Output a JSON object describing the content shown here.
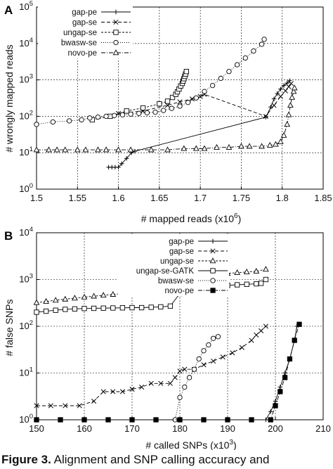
{
  "caption": {
    "label": "Figure 3.",
    "text": "Alignment and SNP calling accuracy and"
  },
  "chart_data": [
    {
      "panel": "A",
      "type": "line",
      "xlabel": "# mapped reads (x10",
      "xlabel_sup": "6",
      "xlabel_end": ")",
      "ylabel": "# wrongly mapped reads",
      "xlim": [
        1.5,
        1.85
      ],
      "ylim": [
        1,
        100000
      ],
      "yscale": "log",
      "grid": true,
      "legend_position": "top-left",
      "x_ticks": [
        "1.5",
        "1.55",
        "1.6",
        "1.65",
        "1.7",
        "1.75",
        "1.8",
        "1.85"
      ],
      "y_ticks": [
        {
          "base": "10",
          "exp": "0"
        },
        {
          "base": "10",
          "exp": "1"
        },
        {
          "base": "10",
          "exp": "2"
        },
        {
          "base": "10",
          "exp": "3"
        },
        {
          "base": "10",
          "exp": "4"
        },
        {
          "base": "10",
          "exp": "5"
        }
      ],
      "series": [
        {
          "name": "gap-pe",
          "marker": "plus",
          "dash": "",
          "points": [
            [
              1.588,
              4
            ],
            [
              1.592,
              4
            ],
            [
              1.596,
              4
            ],
            [
              1.6,
              4
            ],
            [
              1.604,
              5
            ],
            [
              1.61,
              7
            ],
            [
              1.616,
              10
            ],
            [
              1.62,
              11
            ],
            [
              1.78,
              95
            ],
            [
              1.786,
              180
            ],
            [
              1.79,
              300
            ],
            [
              1.794,
              420
            ],
            [
              1.798,
              560
            ],
            [
              1.802,
              700
            ],
            [
              1.806,
              820
            ],
            [
              1.809,
              950
            ]
          ]
        },
        {
          "name": "gap-se",
          "marker": "x",
          "dash": "5,3",
          "points": [
            [
              1.6,
              120
            ],
            [
              1.63,
              140
            ],
            [
              1.66,
              200
            ],
            [
              1.675,
              250
            ],
            [
              1.69,
              300
            ],
            [
              1.7,
              350
            ],
            [
              1.705,
              400
            ],
            [
              1.78,
              100
            ],
            [
              1.79,
              200
            ],
            [
              1.798,
              350
            ],
            [
              1.804,
              500
            ],
            [
              1.808,
              650
            ],
            [
              1.811,
              800
            ]
          ]
        },
        {
          "name": "ungap-se",
          "marker": "square",
          "dash": "3,2",
          "points": [
            [
              1.568,
              80
            ],
            [
              1.59,
              100
            ],
            [
              1.61,
              140
            ],
            [
              1.63,
              170
            ],
            [
              1.65,
              220
            ],
            [
              1.66,
              260
            ],
            [
              1.666,
              330
            ],
            [
              1.67,
              400
            ],
            [
              1.672,
              470
            ],
            [
              1.674,
              560
            ],
            [
              1.676,
              680
            ],
            [
              1.678,
              800
            ],
            [
              1.679,
              930
            ],
            [
              1.68,
              1080
            ],
            [
              1.681,
              1250
            ],
            [
              1.682,
              1450
            ],
            [
              1.683,
              1700
            ]
          ]
        },
        {
          "name": "bwasw-se",
          "marker": "circle",
          "dash": "1,2",
          "points": [
            [
              1.5,
              60
            ],
            [
              1.52,
              70
            ],
            [
              1.54,
              75
            ],
            [
              1.555,
              80
            ],
            [
              1.565,
              90
            ],
            [
              1.575,
              95
            ],
            [
              1.585,
              100
            ],
            [
              1.595,
              105
            ],
            [
              1.605,
              110
            ],
            [
              1.615,
              115
            ],
            [
              1.625,
              120
            ],
            [
              1.635,
              125
            ],
            [
              1.645,
              130
            ],
            [
              1.655,
              145
            ],
            [
              1.665,
              165
            ],
            [
              1.675,
              190
            ],
            [
              1.685,
              240
            ],
            [
              1.695,
              320
            ],
            [
              1.705,
              480
            ],
            [
              1.715,
              700
            ],
            [
              1.725,
              1100
            ],
            [
              1.735,
              1700
            ],
            [
              1.745,
              2600
            ],
            [
              1.755,
              4000
            ],
            [
              1.765,
              6200
            ],
            [
              1.775,
              9500
            ],
            [
              1.778,
              13000
            ]
          ]
        },
        {
          "name": "novo-pe",
          "marker": "triangle",
          "dash": "6,2,1,2",
          "points": [
            [
              1.5,
              12
            ],
            [
              1.515,
              12
            ],
            [
              1.525,
              12
            ],
            [
              1.535,
              12
            ],
            [
              1.55,
              12
            ],
            [
              1.56,
              12
            ],
            [
              1.575,
              12
            ],
            [
              1.585,
              12
            ],
            [
              1.6,
              12
            ],
            [
              1.615,
              12
            ],
            [
              1.64,
              12
            ],
            [
              1.66,
              12
            ],
            [
              1.68,
              13
            ],
            [
              1.695,
              13
            ],
            [
              1.705,
              13
            ],
            [
              1.72,
              14
            ],
            [
              1.735,
              14
            ],
            [
              1.75,
              15
            ],
            [
              1.76,
              15
            ],
            [
              1.775,
              15
            ],
            [
              1.785,
              16
            ],
            [
              1.792,
              17
            ],
            [
              1.798,
              20
            ],
            [
              1.802,
              30
            ],
            [
              1.806,
              60
            ],
            [
              1.808,
              110
            ],
            [
              1.81,
              200
            ],
            [
              1.812,
              330
            ],
            [
              1.814,
              480
            ],
            [
              1.815,
              600
            ]
          ]
        }
      ]
    },
    {
      "panel": "B",
      "type": "line",
      "xlabel": "# called SNPs (x10",
      "xlabel_sup": "3",
      "xlabel_end": ")",
      "ylabel": "# false SNPs",
      "xlim": [
        150,
        210
      ],
      "ylim": [
        1,
        10000
      ],
      "yscale": "log",
      "grid": true,
      "legend_position": "top-center",
      "x_ticks": [
        "150",
        "160",
        "170",
        "180",
        "190",
        "200",
        "210"
      ],
      "y_ticks": [
        {
          "base": "10",
          "exp": "0"
        },
        {
          "base": "10",
          "exp": "1"
        },
        {
          "base": "10",
          "exp": "2"
        },
        {
          "base": "10",
          "exp": "3"
        },
        {
          "base": "10",
          "exp": "4"
        }
      ],
      "series": [
        {
          "name": "gap-pe",
          "marker": "plus",
          "dash": "",
          "points": [
            [
              150,
              1
            ],
            [
              155,
              1
            ],
            [
              160,
              1
            ],
            [
              165,
              1
            ],
            [
              170,
              1
            ],
            [
              175,
              1
            ],
            [
              180,
              1
            ],
            [
              185,
              1
            ],
            [
              190,
              1
            ],
            [
              195,
              1
            ],
            [
              198,
              1
            ],
            [
              199,
              1.5
            ],
            [
              200,
              2.5
            ],
            [
              201,
              5
            ],
            [
              202,
              10
            ],
            [
              203,
              20
            ],
            [
              204,
              50
            ],
            [
              204.5,
              100
            ]
          ]
        },
        {
          "name": "gap-se",
          "marker": "x",
          "dash": "5,3",
          "points": [
            [
              150,
              2
            ],
            [
              153,
              2
            ],
            [
              156,
              2
            ],
            [
              159,
              2
            ],
            [
              162,
              2.5
            ],
            [
              164,
              4
            ],
            [
              166,
              4
            ],
            [
              168,
              4
            ],
            [
              170,
              4.5
            ],
            [
              172,
              5
            ],
            [
              174,
              6
            ],
            [
              176,
              6
            ],
            [
              178,
              6
            ],
            [
              179,
              8
            ],
            [
              180,
              11
            ],
            [
              181,
              12
            ],
            [
              183,
              12
            ],
            [
              185,
              15
            ],
            [
              187,
              18
            ],
            [
              189,
              22
            ],
            [
              191,
              27
            ],
            [
              193,
              35
            ],
            [
              195,
              50
            ],
            [
              196,
              65
            ],
            [
              197,
              80
            ],
            [
              198,
              100
            ]
          ]
        },
        {
          "name": "ungap-se",
          "marker": "triangle",
          "dash": "3,2",
          "points": [
            [
              150,
              320
            ],
            [
              152,
              340
            ],
            [
              154,
              360
            ],
            [
              156,
              380
            ],
            [
              158,
              400
            ],
            [
              160,
              420
            ],
            [
              162,
              440
            ],
            [
              164,
              460
            ],
            [
              166,
              480
            ],
            [
              168,
              500
            ],
            [
              170,
              520
            ],
            [
              172,
              540
            ],
            [
              174,
              560
            ],
            [
              176,
              580
            ],
            [
              178,
              700
            ],
            [
              180,
              1000
            ],
            [
              182,
              1150
            ],
            [
              184,
              1220
            ],
            [
              186,
              1260
            ],
            [
              188,
              1300
            ],
            [
              190,
              1350
            ],
            [
              192,
              1400
            ],
            [
              194,
              1450
            ],
            [
              196,
              1500
            ],
            [
              198,
              1650
            ]
          ]
        },
        {
          "name": "ungap-se-GATK",
          "marker": "square",
          "dash": "",
          "points": [
            [
              150,
              200
            ],
            [
              152,
              210
            ],
            [
              154,
              220
            ],
            [
              156,
              230
            ],
            [
              158,
              235
            ],
            [
              160,
              240
            ],
            [
              162,
              242
            ],
            [
              164,
              244
            ],
            [
              166,
              246
            ],
            [
              168,
              248
            ],
            [
              170,
              250
            ],
            [
              172,
              250
            ],
            [
              174,
              255
            ],
            [
              176,
              260
            ],
            [
              178,
              270
            ],
            [
              180,
              500
            ],
            [
              182,
              700
            ],
            [
              184,
              720
            ],
            [
              186,
              730
            ],
            [
              188,
              740
            ],
            [
              190,
              750
            ],
            [
              192,
              770
            ],
            [
              194,
              790
            ],
            [
              196,
              810
            ],
            [
              197,
              830
            ],
            [
              198,
              1000
            ]
          ]
        },
        {
          "name": "bwasw-se",
          "marker": "circle",
          "dash": "1,2",
          "points": [
            [
              150,
              1
            ],
            [
              160,
              1
            ],
            [
              170,
              1
            ],
            [
              179,
              1
            ],
            [
              180,
              3
            ],
            [
              181,
              5
            ],
            [
              182,
              8
            ],
            [
              183,
              12
            ],
            [
              184,
              20
            ],
            [
              185,
              30
            ],
            [
              186,
              40
            ],
            [
              187,
              55
            ],
            [
              188,
              60
            ]
          ]
        },
        {
          "name": "novo-pe",
          "marker": "filled-square",
          "dash": "6,2,1,2",
          "points": [
            [
              150,
              1
            ],
            [
              155,
              1
            ],
            [
              160,
              1
            ],
            [
              165,
              1
            ],
            [
              170,
              1
            ],
            [
              175,
              1
            ],
            [
              180,
              1
            ],
            [
              185,
              1
            ],
            [
              190,
              1
            ],
            [
              195,
              1
            ],
            [
              199,
              1
            ],
            [
              200,
              2
            ],
            [
              201,
              4
            ],
            [
              202,
              8
            ],
            [
              203,
              20
            ],
            [
              204,
              50
            ],
            [
              205,
              110
            ]
          ]
        }
      ]
    }
  ]
}
